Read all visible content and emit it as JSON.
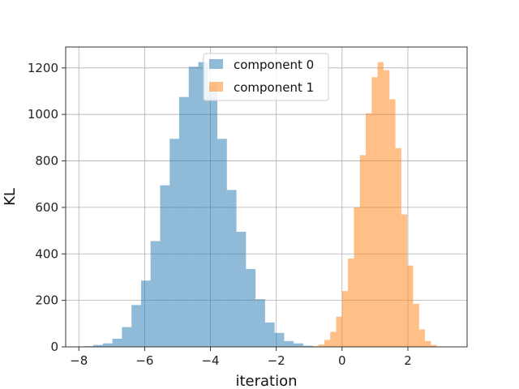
{
  "chart_data": {
    "type": "histogram",
    "xlabel": "iteration",
    "ylabel": "KL",
    "xlim": [
      -8.4,
      3.8
    ],
    "ylim": [
      0,
      1290
    ],
    "xticks": [
      -8,
      -6,
      -4,
      -2,
      0,
      2
    ],
    "yticks": [
      0,
      200,
      400,
      600,
      800,
      1000,
      1200
    ],
    "grid": true,
    "legend_position": "top-center",
    "series": [
      {
        "name": "component 0",
        "color": "#1f77b4",
        "alpha": 0.5,
        "bin_edges": [
          -7.85,
          -7.56,
          -7.27,
          -6.98,
          -6.69,
          -6.4,
          -6.11,
          -5.82,
          -5.53,
          -5.24,
          -4.95,
          -4.66,
          -4.37,
          -4.08,
          -3.79,
          -3.5,
          -3.21,
          -2.92,
          -2.63,
          -2.34,
          -2.05,
          -1.76,
          -1.47,
          -1.18,
          -0.89
        ],
        "counts": [
          3,
          8,
          15,
          35,
          85,
          180,
          285,
          455,
          695,
          895,
          1075,
          1205,
          1225,
          1125,
          895,
          675,
          495,
          335,
          205,
          105,
          60,
          25,
          15,
          5
        ]
      },
      {
        "name": "component 1",
        "color": "#ff7f0e",
        "alpha": 0.5,
        "bin_edges": [
          -0.9,
          -0.72,
          -0.54,
          -0.36,
          -0.18,
          0.0,
          0.18,
          0.36,
          0.54,
          0.72,
          0.9,
          1.08,
          1.26,
          1.44,
          1.62,
          1.8,
          1.98,
          2.16,
          2.34,
          2.52,
          2.7,
          2.88,
          3.06
        ],
        "counts": [
          3,
          10,
          30,
          65,
          130,
          240,
          380,
          600,
          825,
          1005,
          1160,
          1225,
          1190,
          1065,
          855,
          570,
          350,
          185,
          75,
          25,
          8,
          2
        ]
      }
    ]
  }
}
